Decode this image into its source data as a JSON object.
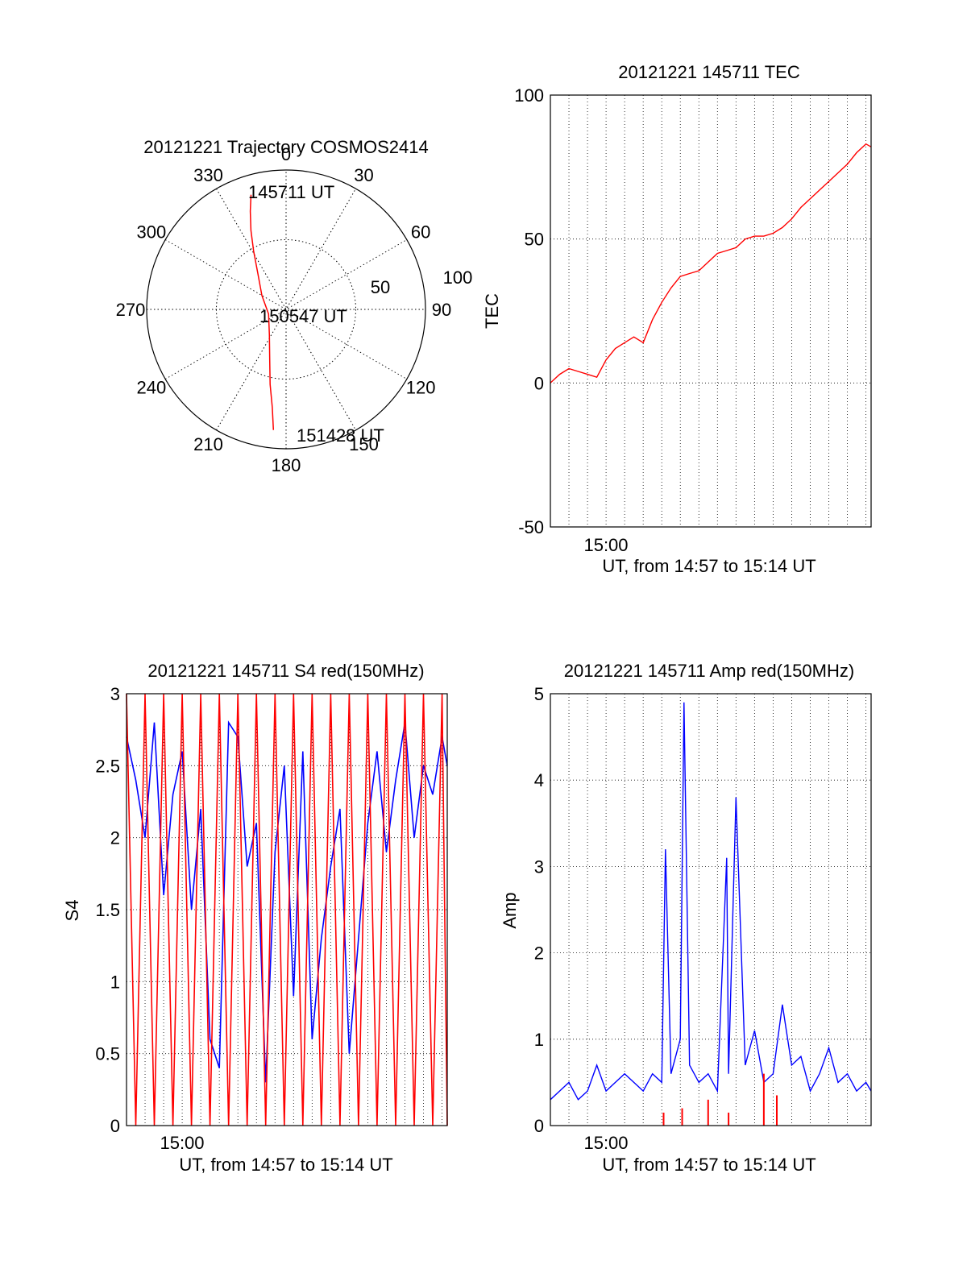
{
  "chart_data": [
    {
      "panel": "polar",
      "type": "polar-trajectory",
      "title": "20121221 Trajectory COSMOS2414",
      "azimuth_labels": [
        {
          "az": 0,
          "text": "0"
        },
        {
          "az": 30,
          "text": "30"
        },
        {
          "az": 60,
          "text": "60"
        },
        {
          "az": 90,
          "text": "90"
        },
        {
          "az": 120,
          "text": "120"
        },
        {
          "az": 150,
          "text": "150"
        },
        {
          "az": 180,
          "text": "180"
        },
        {
          "az": 210,
          "text": "210"
        },
        {
          "az": 240,
          "text": "240"
        },
        {
          "az": 270,
          "text": "270"
        },
        {
          "az": 300,
          "text": "300"
        },
        {
          "az": 330,
          "text": "330"
        }
      ],
      "radial_labels": [
        "50",
        "100"
      ],
      "rings": [
        50,
        100
      ],
      "trajectory": [
        {
          "az": 343,
          "r": 86
        },
        {
          "az": 340,
          "r": 75
        },
        {
          "az": 336,
          "r": 62
        },
        {
          "az": 331,
          "r": 48
        },
        {
          "az": 322,
          "r": 33
        },
        {
          "az": 300,
          "r": 20
        },
        {
          "az": 255,
          "r": 13
        },
        {
          "az": 213,
          "r": 22
        },
        {
          "az": 198,
          "r": 38
        },
        {
          "az": 192,
          "r": 55
        },
        {
          "az": 188,
          "r": 71
        },
        {
          "az": 186,
          "r": 87
        }
      ],
      "point_labels": [
        "145711 UT",
        "150547 UT",
        "151428 UT"
      ],
      "colors": {
        "trajectory": "#ff0000"
      }
    },
    {
      "panel": "tec",
      "type": "line",
      "title": "20121221 145711 TEC",
      "xlabel": "UT, from 14:57 to 15:14 UT",
      "ylabel": "TEC",
      "x_tick_label": "15:00",
      "xlim_min": [
        0,
        17.28
      ],
      "ylim": [
        -50,
        100
      ],
      "yticks": [
        -50,
        0,
        50,
        100
      ],
      "grid": true,
      "series": [
        {
          "color": "#ff0000",
          "x": [
            0,
            0.5,
            1.0,
            1.5,
            2.0,
            2.5,
            3.0,
            3.5,
            4.0,
            4.5,
            5.0,
            5.5,
            6.0,
            6.5,
            7.0,
            7.5,
            8.0,
            8.5,
            9.0,
            9.5,
            10.0,
            10.5,
            11.0,
            11.5,
            12.0,
            12.5,
            13.0,
            13.5,
            14.0,
            14.5,
            15.0,
            15.5,
            16.0,
            16.5,
            17.0,
            17.28
          ],
          "y": [
            0,
            3,
            5,
            4,
            3,
            2,
            8,
            12,
            14,
            16,
            14,
            22,
            28,
            33,
            37,
            38,
            39,
            42,
            45,
            46,
            47,
            50,
            51,
            51,
            52,
            54,
            57,
            61,
            64,
            67,
            70,
            73,
            76,
            80,
            83,
            82
          ]
        }
      ]
    },
    {
      "panel": "s4",
      "type": "line",
      "title": "20121221 145711 S4 red(150MHz)",
      "xlabel": "UT, from 14:57 to 15:14 UT",
      "ylabel": "S4",
      "x_tick_label": "15:00",
      "xlim_min": [
        0,
        17.28
      ],
      "ylim": [
        0,
        3
      ],
      "yticks": [
        0,
        0.5,
        1,
        1.5,
        2,
        2.5,
        3
      ],
      "ytick_labels": [
        "0",
        "0.5",
        "1",
        "1.5",
        "2",
        "2.5",
        "3"
      ],
      "grid": true,
      "series": [
        {
          "color": "#0000ff",
          "x": [
            0,
            0.5,
            1.0,
            1.5,
            2.0,
            2.5,
            3.0,
            3.5,
            4.0,
            4.5,
            5.0,
            5.5,
            6.0,
            6.5,
            7.0,
            7.5,
            8.0,
            8.5,
            9.0,
            9.5,
            10.0,
            10.5,
            11.0,
            11.5,
            12.0,
            12.5,
            13.0,
            13.5,
            14.0,
            14.5,
            15.0,
            15.5,
            16.0,
            16.5,
            17.0,
            17.28
          ],
          "y": [
            2.7,
            2.4,
            2.0,
            2.8,
            1.6,
            2.3,
            2.6,
            1.5,
            2.2,
            0.6,
            0.4,
            2.8,
            2.7,
            1.8,
            2.1,
            0.3,
            1.9,
            2.5,
            0.9,
            2.6,
            0.6,
            1.3,
            1.8,
            2.2,
            0.5,
            1.3,
            2.1,
            2.6,
            1.9,
            2.4,
            2.8,
            2.0,
            2.5,
            2.3,
            2.7,
            2.5
          ]
        },
        {
          "color": "#ff0000",
          "x": [
            0,
            0.5,
            1.0,
            1.5,
            2.0,
            2.5,
            3.0,
            3.5,
            4.0,
            4.5,
            5.0,
            5.5,
            6.0,
            6.5,
            7.0,
            7.5,
            8.0,
            8.5,
            9.0,
            9.5,
            10.0,
            10.5,
            11.0,
            11.5,
            12.0,
            12.5,
            13.0,
            13.5,
            14.0,
            14.5,
            15.0,
            15.5,
            16.0,
            16.5,
            17.0,
            17.28
          ],
          "y": [
            3.0,
            0.0,
            3.0,
            0.0,
            3.0,
            0.0,
            3.0,
            0.0,
            3.0,
            0.0,
            3.0,
            0.0,
            3.0,
            0.0,
            3.0,
            0.0,
            3.0,
            0.0,
            3.0,
            0.0,
            3.0,
            0.0,
            3.0,
            0.0,
            3.0,
            0.0,
            3.0,
            0.0,
            3.0,
            0.0,
            3.0,
            0.0,
            3.0,
            0.0,
            3.0,
            0.0
          ]
        }
      ]
    },
    {
      "panel": "amp",
      "type": "line",
      "title": "20121221 145711 Amp red(150MHz)",
      "xlabel": "UT, from 14:57 to 15:14 UT",
      "ylabel": "Amp",
      "x_tick_label": "15:00",
      "xlim_min": [
        0,
        17.28
      ],
      "ylim": [
        0,
        5
      ],
      "yticks": [
        0,
        1,
        2,
        3,
        4,
        5
      ],
      "grid": true,
      "series": [
        {
          "color": "#0000ff",
          "x": [
            0,
            0.5,
            1.0,
            1.5,
            2.0,
            2.5,
            3.0,
            3.5,
            4.0,
            4.5,
            5.0,
            5.5,
            6.0,
            6.2,
            6.5,
            7.0,
            7.2,
            7.5,
            8.0,
            8.5,
            9.0,
            9.5,
            9.6,
            10.0,
            10.5,
            11.0,
            11.5,
            12.0,
            12.5,
            13.0,
            13.5,
            14.0,
            14.5,
            15.0,
            15.5,
            16.0,
            16.5,
            17.0,
            17.28
          ],
          "y": [
            0.3,
            0.4,
            0.5,
            0.3,
            0.4,
            0.7,
            0.4,
            0.5,
            0.6,
            0.5,
            0.4,
            0.6,
            0.5,
            3.2,
            0.6,
            1.0,
            4.9,
            0.7,
            0.5,
            0.6,
            0.4,
            3.1,
            0.6,
            3.8,
            0.7,
            1.1,
            0.5,
            0.6,
            1.4,
            0.7,
            0.8,
            0.4,
            0.6,
            0.9,
            0.5,
            0.6,
            0.4,
            0.5,
            0.4
          ]
        },
        {
          "color": "#ff0000",
          "x": [
            6.1,
            7.1,
            8.5,
            9.6,
            11.5,
            12.2
          ],
          "y": [
            0.15,
            0.2,
            0.3,
            0.15,
            0.6,
            0.35
          ]
        }
      ]
    }
  ]
}
